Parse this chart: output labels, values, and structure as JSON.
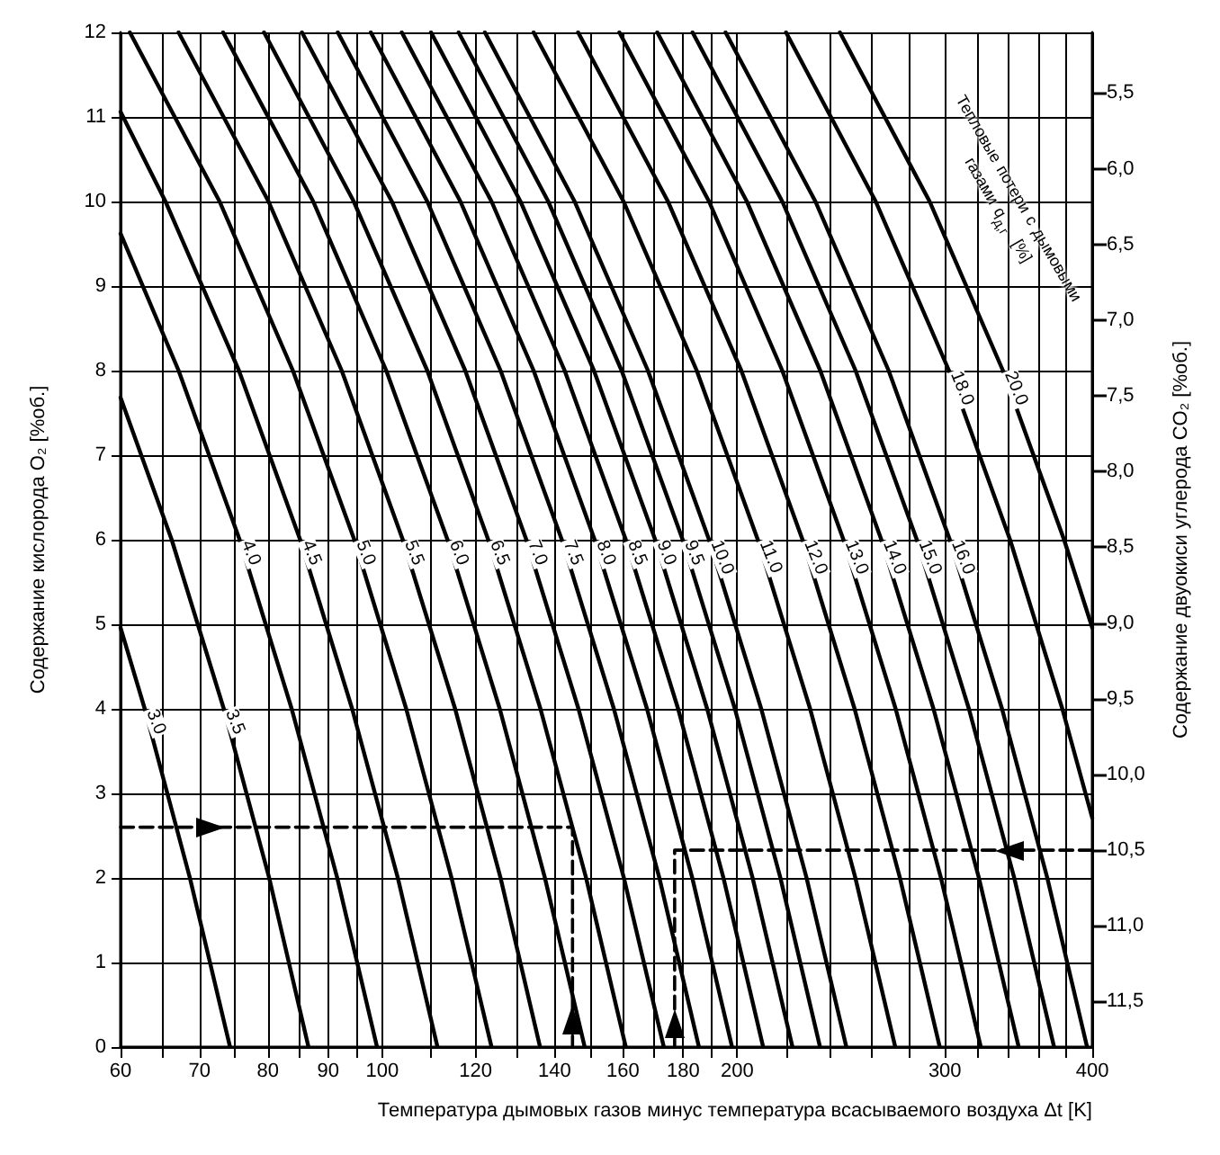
{
  "chart_data": {
    "type": "line",
    "xlabel": "Температура дымовых газов минус температура всасываемого воздуха Δt [K]",
    "ylabel": "Содержание кислорода O₂ [%об.]",
    "y2label": "Содержание двуокиси углерода CO₂ [%об.]",
    "annotations": [
      "Тепловые потери с дымовыми газами q$_{д,г}$ [%]"
    ],
    "log": "x",
    "grid": true,
    "legend": false,
    "marker": "none",
    "line_style": "solid",
    "xlim": [
      60,
      400
    ],
    "xticks": [
      60,
      {
        "value": 65,
        "label": null
      },
      70,
      {
        "value": 75,
        "label": null
      },
      80,
      {
        "value": 85,
        "label": null
      },
      90,
      {
        "value": 95,
        "label": null
      },
      100,
      {
        "value": 110,
        "label": null
      },
      120,
      {
        "value": 130,
        "label": null
      },
      140,
      {
        "value": 150,
        "label": null
      },
      160,
      {
        "value": 170,
        "label": null
      },
      180,
      {
        "value": 190,
        "label": null
      },
      200,
      {
        "value": 220,
        "label": null
      },
      {
        "value": 240,
        "label": null
      },
      {
        "value": 260,
        "label": null
      },
      {
        "value": 280,
        "label": null
      },
      300,
      {
        "value": 320,
        "label": null
      },
      {
        "value": 340,
        "label": null
      },
      {
        "value": 360,
        "label": null
      },
      {
        "value": 380,
        "label": null
      },
      400
    ],
    "ylim": [
      0,
      12
    ],
    "yticks": [
      0,
      1,
      2,
      3,
      4,
      5,
      6,
      7,
      8,
      9,
      10,
      11,
      12
    ],
    "y2lim": [
      11.8,
      5.1
    ],
    "y2ticks": [
      {
        "value": 5.5,
        "label": "5,5"
      },
      {
        "value": 6,
        "label": "6,0"
      },
      {
        "value": 6.5,
        "label": "6,5"
      },
      {
        "value": 7,
        "label": "7,0"
      },
      {
        "value": 7.5,
        "label": "7,5"
      },
      {
        "value": 8,
        "label": "8,0"
      },
      {
        "value": 8.5,
        "label": "8,5"
      },
      {
        "value": 9,
        "label": "9,0"
      },
      {
        "value": 9.5,
        "label": "9,5"
      },
      {
        "value": 10,
        "label": "10,0"
      },
      {
        "value": 10.5,
        "label": "10,5"
      },
      {
        "value": 11,
        "label": "11,0"
      },
      {
        "value": 11.5,
        "label": "11,5"
      }
    ],
    "series": [
      {
        "name": "3.0",
        "color": "#000000",
        "x": [
          74.3,
          68.7,
          62.9,
          60
        ],
        "values": [
          0,
          2,
          4,
          4.96
        ]
      },
      {
        "name": "3.5",
        "color": "#000000",
        "x": [
          86.6,
          80.2,
          73.4,
          66.3,
          60
        ],
        "values": [
          0,
          2,
          4,
          6,
          7.68
        ]
      },
      {
        "name": "4.0",
        "color": "#000000",
        "x": [
          99,
          91.6,
          83.8,
          75.7,
          67.2,
          60
        ],
        "values": [
          0,
          2,
          4,
          6,
          8,
          9.62
        ]
      },
      {
        "name": "4.5",
        "color": "#000000",
        "x": [
          111.4,
          103.1,
          94.3,
          85.2,
          75.6,
          65.5,
          60
        ],
        "values": [
          0,
          2,
          4,
          6,
          8,
          10,
          11.06
        ]
      },
      {
        "name": "5.0",
        "color": "#000000",
        "x": [
          123.8,
          114.5,
          104.8,
          94.7,
          84,
          72.8,
          61.1
        ],
        "values": [
          0,
          2,
          4,
          6,
          8,
          10,
          12
        ]
      },
      {
        "name": "5.5",
        "color": "#000000",
        "x": [
          136.1,
          126,
          115.3,
          104.1,
          92.4,
          80.1,
          67.2
        ],
        "values": [
          0,
          2,
          4,
          6,
          8,
          10,
          12
        ]
      },
      {
        "name": "6.0",
        "color": "#000000",
        "x": [
          148.5,
          137.4,
          125.8,
          113.6,
          100.8,
          87.4,
          73.3
        ],
        "values": [
          0,
          2,
          4,
          6,
          8,
          10,
          12
        ]
      },
      {
        "name": "6.5",
        "color": "#000000",
        "x": [
          160.9,
          148.9,
          136.2,
          123,
          109.2,
          94.6,
          79.4
        ],
        "values": [
          0,
          2,
          4,
          6,
          8,
          10,
          12
        ]
      },
      {
        "name": "7.0",
        "color": "#000000",
        "x": [
          173.3,
          160.3,
          146.7,
          132.5,
          117.6,
          101.9,
          85.5
        ],
        "values": [
          0,
          2,
          4,
          6,
          8,
          10,
          12
        ]
      },
      {
        "name": "7.5",
        "color": "#000000",
        "x": [
          185.6,
          171.8,
          157.2,
          142,
          126,
          109.2,
          91.7
        ],
        "values": [
          0,
          2,
          4,
          6,
          8,
          10,
          12
        ]
      },
      {
        "name": "8.0",
        "color": "#000000",
        "x": [
          198,
          183.2,
          167.7,
          151.4,
          134.4,
          116.5,
          97.8
        ],
        "values": [
          0,
          2,
          4,
          6,
          8,
          10,
          12
        ]
      },
      {
        "name": "8.5",
        "color": "#000000",
        "x": [
          210.4,
          194.7,
          178.2,
          160.9,
          142.8,
          123.8,
          103.9
        ],
        "values": [
          0,
          2,
          4,
          6,
          8,
          10,
          12
        ]
      },
      {
        "name": "9.0",
        "color": "#000000",
        "x": [
          222.8,
          206.1,
          188.6,
          170.4,
          151.2,
          131,
          110
        ],
        "values": [
          0,
          2,
          4,
          6,
          8,
          10,
          12
        ]
      },
      {
        "name": "9.5",
        "color": "#000000",
        "x": [
          235.1,
          217.6,
          199.1,
          179.8,
          159.6,
          138.3,
          116.1
        ],
        "values": [
          0,
          2,
          4,
          6,
          8,
          10,
          12
        ]
      },
      {
        "name": "10.0",
        "color": "#000000",
        "x": [
          247.5,
          229,
          209.6,
          189.3,
          168,
          145.6,
          122.2
        ],
        "values": [
          0,
          2,
          4,
          6,
          8,
          10,
          12
        ]
      },
      {
        "name": "11.0",
        "color": "#000000",
        "x": [
          272.3,
          251.9,
          230.6,
          208.2,
          184.8,
          160.2,
          134.4
        ],
        "values": [
          0,
          2,
          4,
          6,
          8,
          10,
          12
        ]
      },
      {
        "name": "12.0",
        "color": "#000000",
        "x": [
          297,
          274.8,
          251.5,
          227.2,
          201.6,
          174.7,
          146.6
        ],
        "values": [
          0,
          2,
          4,
          6,
          8,
          10,
          12
        ]
      },
      {
        "name": "13.0",
        "color": "#000000",
        "x": [
          321.8,
          297.7,
          272.5,
          246.1,
          218.4,
          189.3,
          158.9
        ],
        "values": [
          0,
          2,
          4,
          6,
          8,
          10,
          12
        ]
      },
      {
        "name": "14.0",
        "color": "#000000",
        "x": [
          346.5,
          320.6,
          293.4,
          265,
          235.2,
          203.8,
          171.1
        ],
        "values": [
          0,
          2,
          4,
          6,
          8,
          10,
          12
        ]
      },
      {
        "name": "15.0",
        "color": "#000000",
        "x": [
          371.3,
          343.5,
          314.4,
          284,
          252,
          218.4,
          183.3
        ],
        "values": [
          0,
          2,
          4,
          6,
          8,
          10,
          12
        ]
      },
      {
        "name": "16.0",
        "color": "#000000",
        "x": [
          396,
          366.4,
          335.4,
          302.9,
          268.8,
          233,
          195.5
        ],
        "values": [
          0,
          2,
          4,
          6,
          8,
          10,
          12
        ]
      },
      {
        "name": "18.0",
        "color": "#000000",
        "x": [
          400,
          377.3,
          340.7,
          302.4,
          262.1,
          220
        ],
        "values": [
          2.71,
          4,
          6,
          8,
          10,
          12
        ]
      },
      {
        "name": "20.0",
        "color": "#000000",
        "x": [
          400,
          378.6,
          336,
          291.2,
          244.4
        ],
        "values": [
          4.96,
          6,
          8,
          10,
          12
        ]
      },
      {
        "color": "#000000",
        "line_style": "dashed",
        "x": [
          60,
          145,
          145
        ],
        "values": [
          2.6,
          2.6,
          0
        ]
      },
      {
        "color": "#000000",
        "line_style": "dashed",
        "axis": "y2",
        "x": [
          400,
          177,
          177
        ],
        "values": [
          10.5,
          10.5,
          11.8
        ]
      }
    ]
  }
}
